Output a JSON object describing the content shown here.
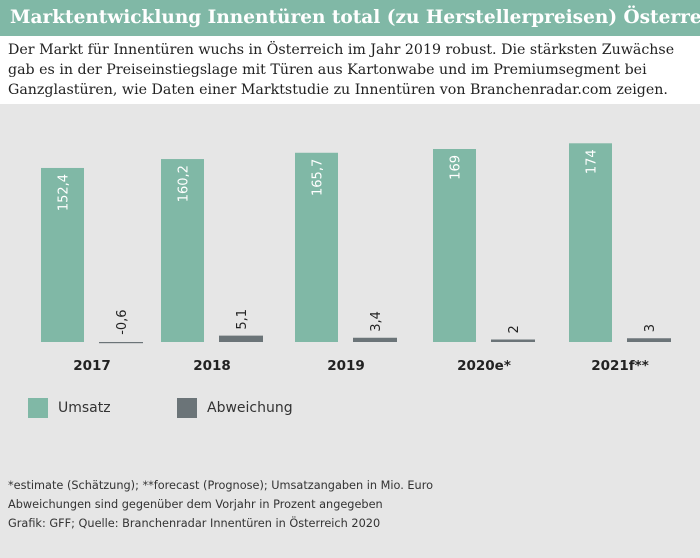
{
  "header": {
    "title": "Marktentwicklung Innentüren total (zu Herstellerpreisen) Österreich"
  },
  "intro": {
    "text": "Der Markt für Innentüren wuchs in Österreich im Jahr 2019 robust. Die stärksten Zuwächse gab es in der Preiseinstiegslage mit Türen aus Kartonwabe und im Premiumsegment bei Ganzglastüren, wie Daten einer Marktstudie zu Innentüren von Branchenradar.com zeigen."
  },
  "legend": {
    "items": [
      {
        "label": "Umsatz",
        "color": "#80b8a6"
      },
      {
        "label": "Abweichung",
        "color": "#6b7478"
      }
    ]
  },
  "footer": {
    "lines": [
      "*estimate (Schätzung); **forecast (Prognose); Umsatzangaben in Mio. Euro",
      "Abweichungen sind gegenüber dem Vorjahr in Prozent angegeben",
      "Grafik: GFF; Quelle: Branchenradar Innentüren in Österreich 2020"
    ]
  },
  "chart_data": {
    "type": "bar",
    "title": "Marktentwicklung Innentüren total (zu Herstellerpreisen) Österreich",
    "categories": [
      "2017",
      "2018",
      "2019",
      "2020e*",
      "2021f**"
    ],
    "series": [
      {
        "name": "Umsatz",
        "color": "#80b8a6",
        "values": [
          152.4,
          160.2,
          165.7,
          169,
          174
        ],
        "labels": [
          "152,4",
          "160,2",
          "165,7",
          "169",
          "174"
        ]
      },
      {
        "name": "Abweichung",
        "color": "#6b7478",
        "values": [
          -0.6,
          5.1,
          3.4,
          2,
          3
        ],
        "labels": [
          "-0,6",
          "5,1",
          "3,4",
          "2",
          "3"
        ]
      }
    ],
    "grid": false,
    "legend_position": "bottom-left",
    "xlabel": "",
    "ylabel": ""
  },
  "colors": {
    "accent": "#80b8a6",
    "dark_bar": "#6b7478",
    "panel": "#e6e6e6",
    "baseline": "#8a8a8a"
  }
}
